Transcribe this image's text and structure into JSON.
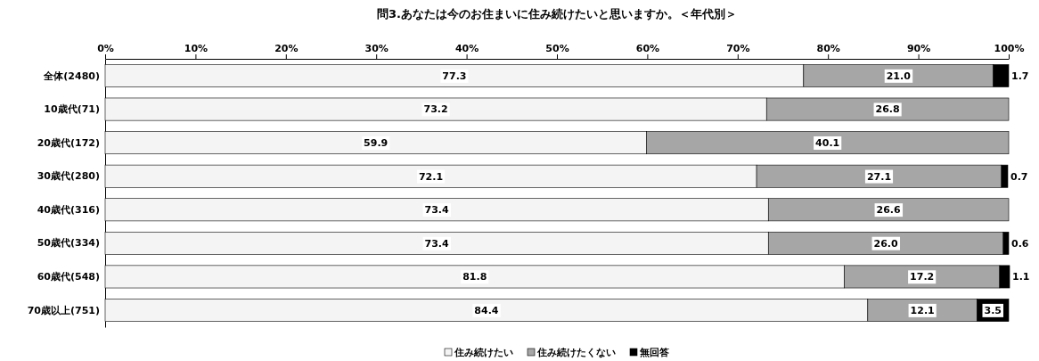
{
  "chart_data": {
    "type": "bar",
    "orientation": "horizontal",
    "stacked": true,
    "title": "問3.あなたは今のお住まいに住み続けたいと思いますか。＜年代別＞",
    "categories": [
      "全体(2480)",
      "10歳代(71)",
      "20歳代(172)",
      "30歳代(280)",
      "40歳代(316)",
      "50歳代(334)",
      "60歳代(548)",
      "70歳以上(751)"
    ],
    "series": [
      {
        "name": "住み続けたい",
        "color": "#f4f4f4",
        "values": [
          77.3,
          73.2,
          59.9,
          72.1,
          73.4,
          73.4,
          81.8,
          84.4
        ],
        "value_labels": [
          "77.3",
          "73.2",
          "59.9",
          "72.1",
          "73.4",
          "73.4",
          "81.8",
          "84.4"
        ]
      },
      {
        "name": "住み続けたくない",
        "color": "#a6a6a6",
        "values": [
          21.0,
          26.8,
          40.1,
          27.1,
          26.6,
          26.0,
          17.2,
          12.1
        ],
        "value_labels": [
          "21.0",
          "26.8",
          "40.1",
          "27.1",
          "26.6",
          "26.0",
          "17.2",
          "12.1"
        ]
      },
      {
        "name": "無回答",
        "color": "#000000",
        "values": [
          1.7,
          0,
          0,
          0.7,
          0,
          0.6,
          1.1,
          3.5
        ],
        "value_labels": [
          "1.7",
          null,
          null,
          "0.7",
          null,
          "0.6",
          "1.1",
          "3.5"
        ]
      }
    ],
    "xlim": [
      0,
      100
    ],
    "xticks": [
      {
        "value": 0,
        "label": "0%"
      },
      {
        "value": 10,
        "label": "10%"
      },
      {
        "value": 20,
        "label": "20%"
      },
      {
        "value": 30,
        "label": "30%"
      },
      {
        "value": 40,
        "label": "40%"
      },
      {
        "value": 50,
        "label": "50%"
      },
      {
        "value": 60,
        "label": "60%"
      },
      {
        "value": 70,
        "label": "70%"
      },
      {
        "value": 80,
        "label": "80%"
      },
      {
        "value": 90,
        "label": "90%"
      },
      {
        "value": 100,
        "label": "100%"
      }
    ],
    "legend": "bottom"
  }
}
